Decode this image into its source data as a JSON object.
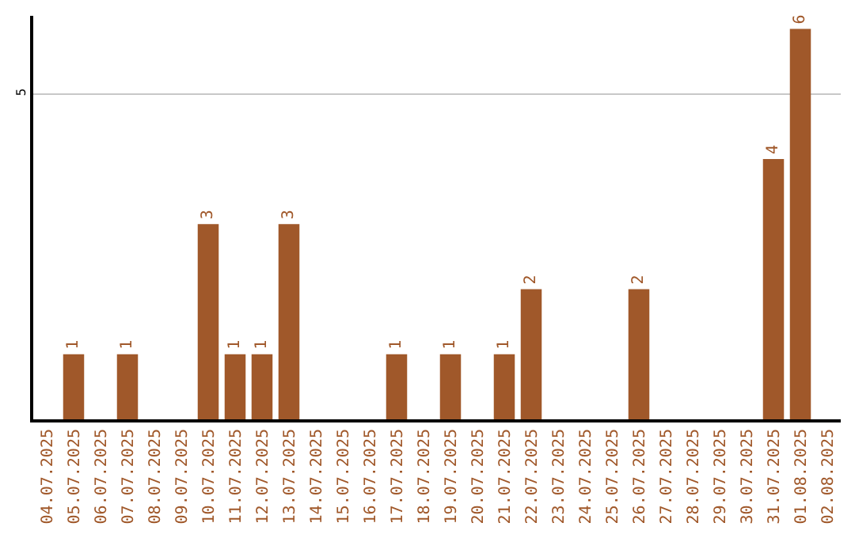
{
  "chart_data": {
    "type": "bar",
    "categories": [
      "04.07.2025",
      "05.07.2025",
      "06.07.2025",
      "07.07.2025",
      "08.07.2025",
      "09.07.2025",
      "10.07.2025",
      "11.07.2025",
      "12.07.2025",
      "13.07.2025",
      "14.07.2025",
      "15.07.2025",
      "16.07.2025",
      "17.07.2025",
      "18.07.2025",
      "19.07.2025",
      "20.07.2025",
      "21.07.2025",
      "22.07.2025",
      "23.07.2025",
      "24.07.2025",
      "25.07.2025",
      "26.07.2025",
      "27.07.2025",
      "28.07.2025",
      "29.07.2025",
      "30.07.2025",
      "31.07.2025",
      "01.08.2025",
      "02.08.2025"
    ],
    "values": [
      0,
      1,
      0,
      1,
      0,
      0,
      3,
      1,
      1,
      3,
      0,
      0,
      0,
      1,
      0,
      1,
      0,
      1,
      2,
      0,
      0,
      0,
      2,
      0,
      0,
      0,
      0,
      4,
      6,
      0
    ],
    "value_labels": [
      null,
      "1",
      null,
      "1",
      null,
      null,
      "3",
      "1",
      "1",
      "3",
      null,
      null,
      null,
      "1",
      null,
      "1",
      null,
      "1",
      "2",
      null,
      null,
      null,
      "2",
      null,
      null,
      null,
      null,
      "4",
      "6",
      null
    ],
    "color": "#a0582a",
    "ylim": [
      0,
      6.2
    ],
    "yticks": [
      5
    ],
    "grid": "y",
    "legend": false
  }
}
